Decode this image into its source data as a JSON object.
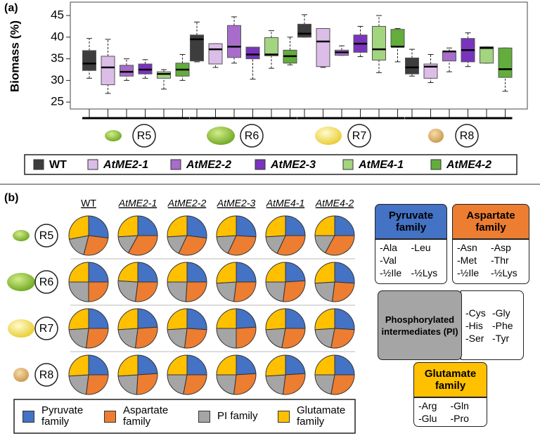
{
  "chart_data": [
    {
      "type": "box",
      "panel": "(a)",
      "y_label": "Biomass (%)",
      "ylim": [
        23.4,
        48.1
      ],
      "yticks": [
        25,
        30,
        35,
        40,
        45
      ],
      "categories": [
        "R5",
        "R6",
        "R7",
        "R8"
      ],
      "series": [
        {
          "name": "WT",
          "color": "#3d3d3d",
          "values": [
            [
              30.5,
              32.3,
              33.9,
              36.9,
              39.7
            ],
            [
              34.3,
              34.5,
              39.5,
              40.5,
              43.5
            ],
            [
              40,
              40,
              40.8,
              43,
              45.2
            ],
            [
              31,
              31.5,
              33,
              35.2,
              37.2
            ]
          ]
        },
        {
          "name": "AtME2-1",
          "color": "#dcbde8",
          "values": [
            [
              27,
              29,
              33,
              35.6,
              39.5
            ],
            [
              33,
              33.8,
              37.2,
              38.5,
              38.5
            ],
            [
              33,
              33.2,
              39,
              42,
              42
            ],
            [
              29.5,
              30.5,
              33.2,
              33.8,
              36
            ]
          ]
        },
        {
          "name": "AtME2-2",
          "color": "#a86ccb",
          "values": [
            [
              30,
              31,
              32,
              33.5,
              35
            ],
            [
              34,
              35.3,
              37.8,
              42.7,
              44.7
            ],
            [
              35.8,
              35.8,
              36.5,
              37,
              38
            ],
            [
              32,
              34.5,
              36.7,
              36.7,
              37.5
            ]
          ]
        },
        {
          "name": "AtME2-3",
          "color": "#7a33bd",
          "values": [
            [
              30.5,
              31.5,
              32.5,
              33.8,
              34.8
            ],
            [
              30.3,
              35,
              36,
              37.7,
              37.7
            ],
            [
              35.5,
              36.5,
              38.5,
              40.5,
              42.5
            ],
            [
              33.2,
              34.3,
              37,
              39.7,
              41
            ]
          ]
        },
        {
          "name": "AtME4-1",
          "color": "#a3d47f",
          "values": [
            [
              28,
              30.5,
              31.5,
              32,
              32.5
            ],
            [
              32.8,
              35.7,
              36,
              39.9,
              41.5
            ],
            [
              31.8,
              34.7,
              37.2,
              42.5,
              45
            ],
            [
              34,
              34,
              37.5,
              37.8,
              37.8
            ]
          ]
        },
        {
          "name": "AtME4-2",
          "color": "#62ad3c",
          "values": [
            [
              30,
              31,
              32.5,
              34,
              36
            ],
            [
              33.6,
              34,
              35.6,
              37,
              40
            ],
            [
              34.3,
              37.8,
              37.8,
              41.8,
              42
            ],
            [
              27.5,
              30.7,
              32.6,
              37.5,
              37.5
            ]
          ]
        }
      ]
    },
    {
      "type": "pie",
      "panel": "(b)",
      "categories": [
        "WT",
        "AtME2-1",
        "AtME2-2",
        "AtME2-3",
        "AtME4-1",
        "AtME4-2"
      ],
      "rows": [
        "R5",
        "R6",
        "R7",
        "R8"
      ],
      "series": [
        {
          "name": "Pyruvate family",
          "color": "#4472c4"
        },
        {
          "name": "Aspartate family",
          "color": "#ed7d31"
        },
        {
          "name": "PI family",
          "color": "#a5a5a5"
        },
        {
          "name": "Glutamate family",
          "color": "#ffc000"
        }
      ],
      "values": [
        [
          [
            27,
            27,
            18,
            28
          ],
          [
            25,
            33,
            16,
            26
          ],
          [
            27,
            30,
            17,
            26
          ],
          [
            26,
            31,
            17,
            26
          ],
          [
            25,
            32,
            17,
            26
          ],
          [
            25,
            33,
            17,
            25
          ]
        ],
        [
          [
            25,
            25,
            25,
            25
          ],
          [
            25,
            27,
            24,
            24
          ],
          [
            25,
            26,
            24,
            25
          ],
          [
            25,
            27,
            22,
            26
          ],
          [
            24,
            28,
            23,
            25
          ],
          [
            26,
            26,
            22,
            26
          ]
        ],
        [
          [
            25,
            27,
            22,
            26
          ],
          [
            24,
            28,
            22,
            26
          ],
          [
            26,
            26,
            22,
            26
          ],
          [
            24,
            26,
            25,
            25
          ],
          [
            25,
            28,
            21,
            26
          ],
          [
            26,
            27,
            21,
            26
          ]
        ],
        [
          [
            25,
            27,
            22,
            26
          ],
          [
            24,
            27,
            23,
            26
          ],
          [
            25,
            28,
            22,
            25
          ],
          [
            24,
            28,
            23,
            25
          ],
          [
            24,
            28,
            22,
            26
          ],
          [
            25,
            28,
            22,
            25
          ]
        ]
      ]
    }
  ],
  "families": [
    {
      "title": "Pyruvate family",
      "items": [
        [
          "-Ala",
          "-Leu"
        ],
        [
          "-Val"
        ],
        [
          "-½Ile",
          "-½Lys"
        ]
      ]
    },
    {
      "title": "Aspartate family",
      "items": [
        [
          "-Asn",
          "-Asp"
        ],
        [
          "-Met",
          "-Thr"
        ],
        [
          "-½Ile",
          "-½Lys"
        ]
      ]
    },
    {
      "title": "Phosphorylated intermediates (PI)",
      "items": [
        [
          "-Cys",
          "-Gly"
        ],
        [
          "-His",
          "-Phe"
        ],
        [
          "-Ser",
          "-Tyr"
        ]
      ]
    },
    {
      "title": "Glutamate family",
      "items": [
        [
          "-Arg",
          "-Gln"
        ],
        [
          "-Glu",
          "-Pro"
        ]
      ]
    }
  ]
}
